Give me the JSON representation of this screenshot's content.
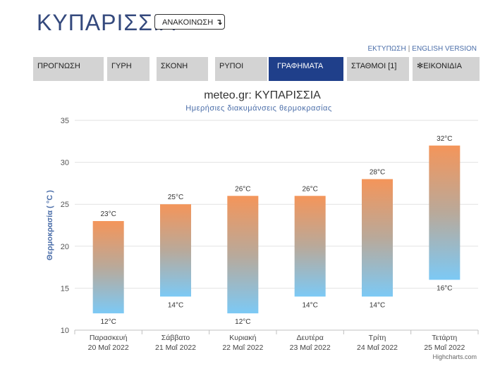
{
  "header": {
    "title": "ΚΥΠΑΡΙΣΣΙΑ",
    "announce_label": "ΑΝΑΚΟΙΝΩΣΗ",
    "announce_icon": "arrow-down-icon",
    "links": {
      "print": "ΕΚΤΥΠΩΣΗ",
      "separator": "|",
      "english": "ENGLISH VERSION"
    }
  },
  "tabs": [
    {
      "label": "ΠΡΟΓΝΩΣΗ",
      "active": false
    },
    {
      "label": "ΓΥΡΗ",
      "active": false
    },
    {
      "label": "ΣΚΟΝΗ",
      "active": false
    },
    {
      "label": "ΡΥΠΟΙ",
      "active": false
    },
    {
      "label": "ΓΡΑΦΗΜΑΤΑ",
      "active": true
    },
    {
      "label": "ΣΤΑΘΜΟΙ [1]",
      "active": false
    },
    {
      "label": "ΕΙΚΟΝΙΔΙΑ",
      "active": false,
      "icon": "gear-icon"
    }
  ],
  "colors": {
    "accent": "#1f3f8a",
    "tab_bg": "#d3d3d3",
    "bar_top": "#f4955a",
    "bar_bottom": "#7cc9f5"
  },
  "credit": "Highcharts.com",
  "chart_data": {
    "type": "columnrange",
    "title": "meteo.gr: ΚΥΠΑΡΙΣΣΙΑ",
    "subtitle": "Ημερήσιες διακυμάνσεις θερμοκρασίας",
    "ylabel": "Θερμοκρασία ( °C )",
    "ylim": [
      10,
      35
    ],
    "yticks": [
      10,
      15,
      20,
      25,
      30,
      35
    ],
    "grid": true,
    "categories": [
      [
        "Παρασκευή",
        "20 Μαΐ 2022"
      ],
      [
        "Σάββατο",
        "21 Μαΐ 2022"
      ],
      [
        "Κυριακή",
        "22 Μαΐ 2022"
      ],
      [
        "Δευτέρα",
        "23 Μαΐ 2022"
      ],
      [
        "Τρίτη",
        "24 Μαΐ 2022"
      ],
      [
        "Τετάρτη",
        "25 Μαΐ 2022"
      ]
    ],
    "low": [
      12,
      14,
      12,
      14,
      14,
      16
    ],
    "high": [
      23,
      25,
      26,
      26,
      28,
      32
    ],
    "unit": "°C"
  }
}
